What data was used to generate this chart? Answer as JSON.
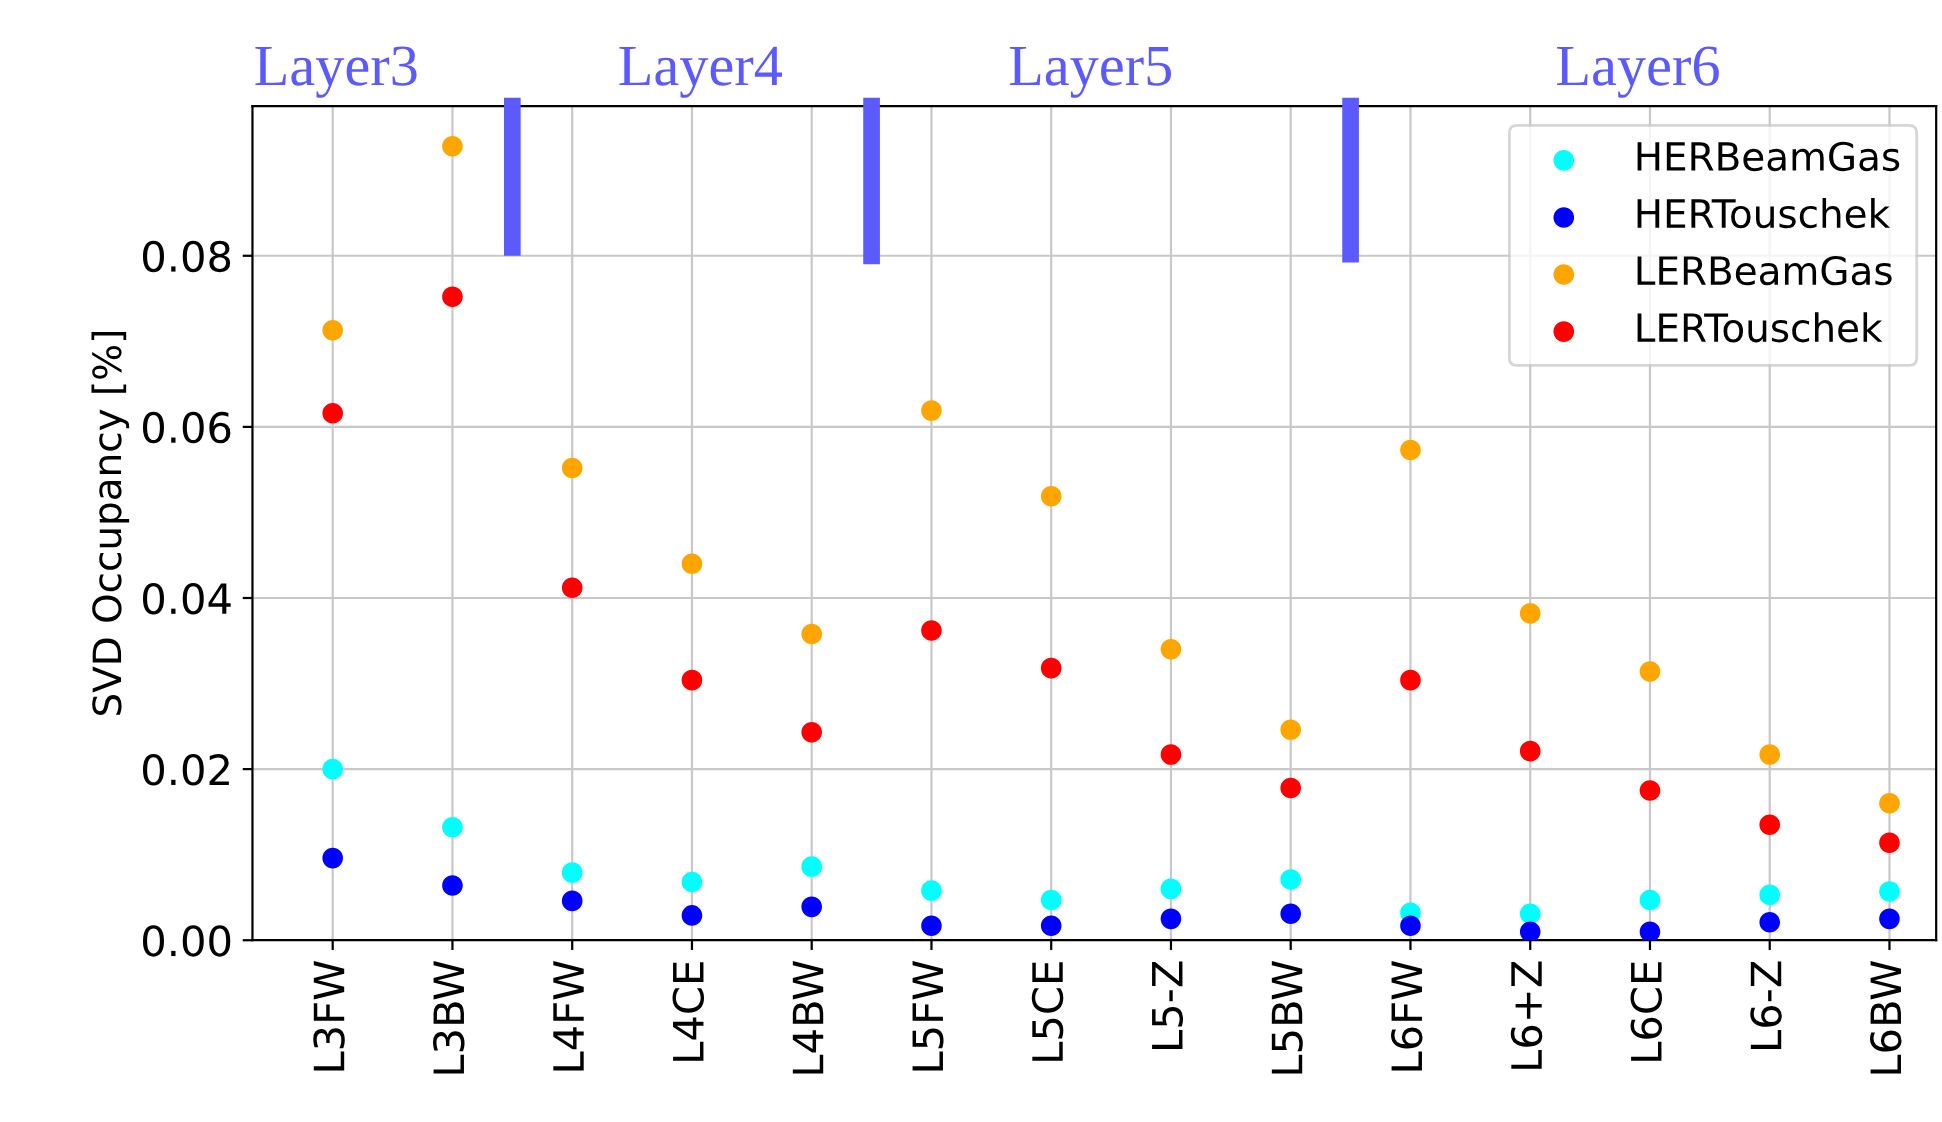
{
  "chart_data": {
    "type": "scatter",
    "ylabel": "SVD Occupancy [%]",
    "categories": [
      "L3FW",
      "L3BW",
      "L4FW",
      "L4CE",
      "L4BW",
      "L5FW",
      "L5CE",
      "L5-Z",
      "L5BW",
      "L6FW",
      "L6+Z",
      "L6CE",
      "L6-Z",
      "L6BW"
    ],
    "series": [
      {
        "name": "HERBeamGas",
        "color": "#00ffff",
        "values": [
          0.02,
          0.0132,
          0.0079,
          0.0068,
          0.0086,
          0.0058,
          0.0047,
          0.006,
          0.0071,
          0.0032,
          0.0031,
          0.0047,
          0.0053,
          0.0057
        ]
      },
      {
        "name": "HERTouschek",
        "color": "#0000ff",
        "values": [
          0.0096,
          0.0064,
          0.0046,
          0.0029,
          0.0039,
          0.0017,
          0.0017,
          0.0025,
          0.0031,
          0.0017,
          0.001,
          0.001,
          0.0021,
          0.0025
        ]
      },
      {
        "name": "LERBeamGas",
        "color": "#ffa500",
        "values": [
          0.0713,
          0.0928,
          0.0552,
          0.044,
          0.0358,
          0.0619,
          0.0519,
          0.034,
          0.0246,
          0.0573,
          0.0382,
          0.0314,
          0.0217,
          0.016
        ]
      },
      {
        "name": "LERTouschek",
        "color": "#ff0000",
        "values": [
          0.0616,
          0.0752,
          0.0412,
          0.0304,
          0.0243,
          0.0362,
          0.0318,
          0.0217,
          0.0178,
          0.0304,
          0.0221,
          0.0175,
          0.0135,
          0.0114
        ]
      }
    ],
    "annotations": [
      "Layer3",
      "Layer4",
      "Layer5",
      "Layer6"
    ],
    "ylim": [
      0,
      0.0975
    ],
    "yticks": [
      {
        "value": 0,
        "label": "0.00"
      },
      {
        "value": 0.02,
        "label": "0.02"
      },
      {
        "value": 0.04,
        "label": "0.04"
      },
      {
        "value": 0.06,
        "label": "0.06"
      },
      {
        "value": 0.08,
        "label": "0.08"
      }
    ],
    "grid": true,
    "legend": "top right",
    "marker": "circle"
  }
}
